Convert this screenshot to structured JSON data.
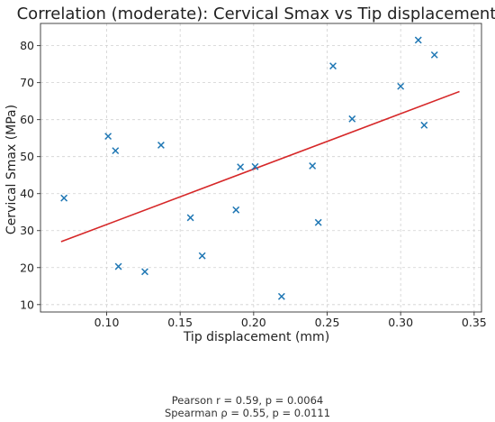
{
  "chart_data": {
    "type": "scatter",
    "title": "Correlation (moderate): Cervical Smax vs Tip displacement",
    "xlabel": "Tip displacement (mm)",
    "ylabel": "Cervical Smax (MPa)",
    "xlim": [
      0.055,
      0.355
    ],
    "ylim": [
      8,
      86
    ],
    "xticks": [
      0.1,
      0.15,
      0.2,
      0.25,
      0.3,
      0.35
    ],
    "xtick_labels": [
      "0.10",
      "0.15",
      "0.20",
      "0.25",
      "0.30",
      "0.35"
    ],
    "yticks": [
      10,
      20,
      30,
      40,
      50,
      60,
      70,
      80
    ],
    "ytick_labels": [
      "10",
      "20",
      "30",
      "40",
      "50",
      "60",
      "70",
      "80"
    ],
    "grid": true,
    "marker": "x",
    "marker_color": "#1f77b4",
    "points": [
      {
        "x": 0.071,
        "y": 38.8
      },
      {
        "x": 0.101,
        "y": 55.5
      },
      {
        "x": 0.106,
        "y": 51.6
      },
      {
        "x": 0.108,
        "y": 20.3
      },
      {
        "x": 0.126,
        "y": 18.9
      },
      {
        "x": 0.137,
        "y": 53.1
      },
      {
        "x": 0.157,
        "y": 33.5
      },
      {
        "x": 0.165,
        "y": 23.2
      },
      {
        "x": 0.188,
        "y": 35.6
      },
      {
        "x": 0.191,
        "y": 47.2
      },
      {
        "x": 0.201,
        "y": 47.3
      },
      {
        "x": 0.219,
        "y": 12.2
      },
      {
        "x": 0.24,
        "y": 47.5
      },
      {
        "x": 0.244,
        "y": 32.2
      },
      {
        "x": 0.254,
        "y": 74.5
      },
      {
        "x": 0.267,
        "y": 60.2
      },
      {
        "x": 0.3,
        "y": 69.0
      },
      {
        "x": 0.312,
        "y": 81.5
      },
      {
        "x": 0.316,
        "y": 58.5
      },
      {
        "x": 0.323,
        "y": 77.5
      }
    ],
    "fit_line": {
      "color": "#d62728",
      "x": [
        0.069,
        0.34
      ],
      "y": [
        27.0,
        67.6
      ]
    }
  },
  "stats": {
    "pearson": "Pearson r = 0.59, p = 0.0064",
    "spearman": "Spearman ρ = 0.55, p = 0.0111"
  }
}
